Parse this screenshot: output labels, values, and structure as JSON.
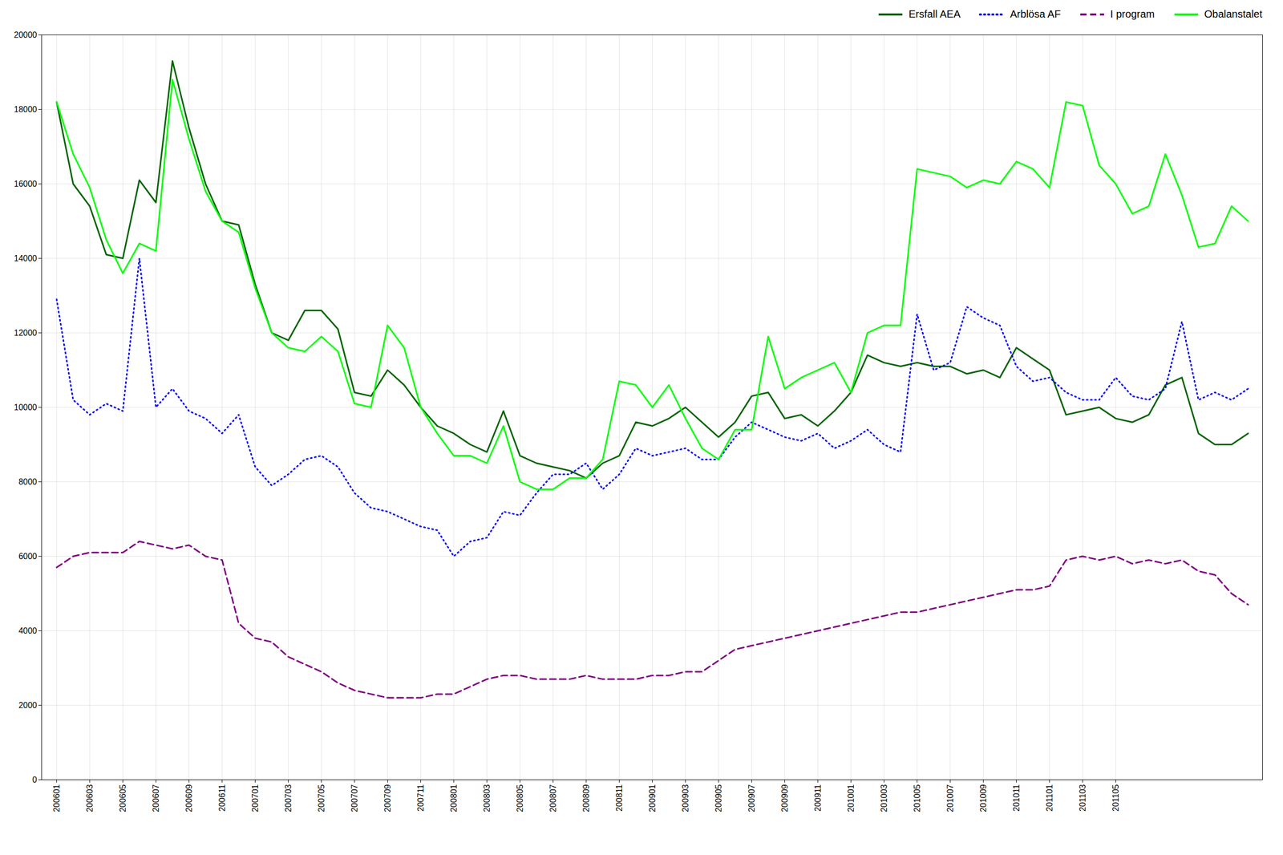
{
  "chart_data": {
    "type": "line",
    "categories": [
      "200601",
      null,
      "200603",
      null,
      "200605",
      null,
      "200607",
      null,
      "200609",
      null,
      "200611",
      null,
      "200701",
      null,
      "200703",
      null,
      "200705",
      null,
      "200707",
      null,
      "200709",
      null,
      "200711",
      null,
      "200801",
      null,
      "200803",
      null,
      "200805",
      null,
      "200807",
      null,
      "200809",
      null,
      "200811",
      null,
      "200901",
      null,
      "200903",
      null,
      "200905",
      null,
      "200907",
      null,
      "200909",
      null,
      "200911",
      null,
      "201001",
      null,
      "201003",
      null,
      "201005",
      null,
      "201007",
      null,
      "201009",
      null,
      "201011",
      null,
      "201101",
      null,
      "201103",
      null,
      "201105",
      null,
      null,
      null,
      null,
      null,
      null,
      null,
      null
    ],
    "series": [
      {
        "name": "Ersfall AEA",
        "color": "#006400",
        "line_style": "solid",
        "values": [
          18200,
          16000,
          15400,
          14100,
          14000,
          16100,
          15500,
          19300,
          17500,
          16000,
          15000,
          14900,
          13300,
          12000,
          11800,
          12600,
          12600,
          12100,
          10400,
          10300,
          11000,
          10600,
          10000,
          9500,
          9300,
          9000,
          8800,
          9900,
          8700,
          8500,
          8400,
          8300,
          8100,
          8500,
          8700,
          9600,
          9500,
          9700,
          10000,
          9600,
          9200,
          9600,
          10300,
          10400,
          9700,
          9800,
          9500,
          9900,
          10400,
          11400,
          11200,
          11100,
          11200,
          11100,
          11100,
          10900,
          11000,
          10800,
          11600,
          11300,
          11000,
          9800,
          9900,
          10000,
          9700,
          9600,
          9800,
          10600,
          10800,
          9300,
          9000,
          9000,
          9300
        ]
      },
      {
        "name": "Arblösa AF",
        "color": "#0000FF",
        "line_style": "dotted",
        "values": [
          12900,
          10200,
          9800,
          10100,
          9900,
          14000,
          10000,
          10500,
          9900,
          9700,
          9300,
          9800,
          8400,
          7900,
          8200,
          8600,
          8700,
          8400,
          7700,
          7300,
          7200,
          7000,
          6800,
          6700,
          6000,
          6400,
          6500,
          7200,
          7100,
          7700,
          8200,
          8200,
          8500,
          7800,
          8200,
          8900,
          8700,
          8800,
          8900,
          8600,
          8600,
          9200,
          9600,
          9400,
          9200,
          9100,
          9300,
          8900,
          9100,
          9400,
          9000,
          8800,
          12500,
          11000,
          11200,
          12700,
          12400,
          12200,
          11100,
          10700,
          10800,
          10400,
          10200,
          10200,
          10800,
          10300,
          10200,
          10500,
          12300,
          10200,
          10400,
          10200,
          10500
        ]
      },
      {
        "name": "I program",
        "color": "#800080",
        "line_style": "dashed",
        "values": [
          5700,
          6000,
          6100,
          6100,
          6100,
          6400,
          6300,
          6200,
          6300,
          6000,
          5900,
          4200,
          3800,
          3700,
          3300,
          3100,
          2900,
          2600,
          2400,
          2300,
          2200,
          2200,
          2200,
          2300,
          2300,
          2500,
          2700,
          2800,
          2800,
          2700,
          2700,
          2700,
          2800,
          2700,
          2700,
          2700,
          2800,
          2800,
          2900,
          2900,
          3200,
          3500,
          3600,
          3700,
          3800,
          3900,
          4000,
          4100,
          4200,
          4300,
          4400,
          4500,
          4500,
          4600,
          4700,
          4800,
          4900,
          5000,
          5100,
          5100,
          5200,
          5900,
          6000,
          5900,
          6000,
          5800,
          5900,
          5800,
          5900,
          5600,
          5500,
          5000,
          4700
        ]
      },
      {
        "name": "Obalanstalet",
        "color": "#00FF00",
        "line_style": "solid",
        "values": [
          18200,
          16800,
          15900,
          14500,
          13600,
          14400,
          14200,
          18800,
          17200,
          15800,
          15000,
          14700,
          13200,
          12000,
          11600,
          11500,
          11900,
          11500,
          10100,
          10000,
          12200,
          11600,
          10000,
          9300,
          8700,
          8700,
          8500,
          9500,
          8000,
          7800,
          7800,
          8100,
          8100,
          8600,
          10700,
          10600,
          10000,
          10600,
          9700,
          8900,
          8600,
          9400,
          9400,
          11900,
          10500,
          10800,
          11000,
          11200,
          10400,
          12000,
          12200,
          12200,
          16400,
          16300,
          16200,
          15900,
          16100,
          16000,
          16600,
          16400,
          15900,
          18200,
          18100,
          16500,
          16000,
          15200,
          15400,
          16800,
          15700,
          14300,
          14400,
          15400,
          15000
        ]
      }
    ],
    "ylim": [
      0,
      20000
    ],
    "yticks": [
      0,
      2000,
      4000,
      6000,
      8000,
      10000,
      12000,
      14000,
      16000,
      18000,
      20000
    ],
    "grid": true,
    "legend": "upper right"
  }
}
